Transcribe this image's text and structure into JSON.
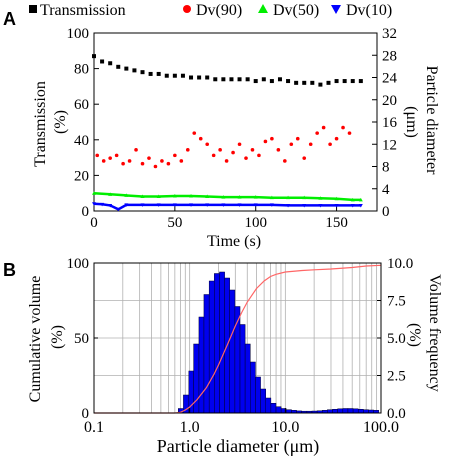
{
  "panel_a_label": "A",
  "panel_b_label": "B",
  "chart_data": [
    {
      "panel": "A",
      "type": "scatter",
      "xlabel": "Time (s)",
      "ylabel": "Transmission (%)",
      "ylabel_right": "Particle diameter (μm)",
      "xlim": [
        0,
        175
      ],
      "ylim": [
        0,
        100
      ],
      "ylim_right": [
        0,
        32
      ],
      "x_ticks": [
        "0",
        "50",
        "100",
        "150"
      ],
      "y_ticks": [
        "0",
        "20",
        "40",
        "60",
        "80",
        "100"
      ],
      "y_ticks_right": [
        "0",
        "4",
        "8",
        "12",
        "16",
        "20",
        "24",
        "28",
        "32"
      ],
      "legend_position": "top",
      "series": [
        {
          "name": "Transmission",
          "axis": "left",
          "marker": "square",
          "color": "#000000",
          "x": [
            0,
            5,
            10,
            15,
            20,
            25,
            30,
            35,
            40,
            45,
            50,
            55,
            60,
            65,
            70,
            75,
            80,
            85,
            90,
            95,
            100,
            105,
            110,
            115,
            120,
            125,
            130,
            135,
            140,
            145,
            150,
            155,
            160,
            165
          ],
          "values": [
            87,
            84,
            83,
            81,
            80,
            79,
            78,
            77,
            77,
            76,
            76,
            76,
            75,
            75,
            75,
            74,
            74,
            74,
            74,
            74,
            73,
            74,
            73,
            74,
            73,
            72,
            72,
            72,
            71,
            72,
            73,
            73,
            73,
            73
          ]
        },
        {
          "name": "Dv(90)",
          "axis": "right",
          "marker": "circle",
          "color": "#ff0000",
          "x": [
            2,
            6,
            10,
            14,
            18,
            22,
            26,
            30,
            34,
            38,
            42,
            46,
            50,
            54,
            58,
            62,
            66,
            70,
            74,
            78,
            82,
            86,
            90,
            94,
            98,
            102,
            106,
            110,
            114,
            118,
            122,
            126,
            130,
            134,
            138,
            142,
            146,
            150,
            154,
            158
          ],
          "values": [
            10,
            9,
            9.5,
            10,
            8.5,
            9,
            11,
            8.5,
            9.5,
            8,
            9,
            8.5,
            10,
            9,
            11,
            14,
            13,
            12,
            10,
            11,
            9,
            10.5,
            12,
            9.5,
            11,
            10,
            12.5,
            13,
            11,
            9,
            12,
            13,
            9.5,
            12,
            14,
            15,
            12,
            13,
            15,
            14
          ]
        },
        {
          "name": "Dv(50)",
          "axis": "right",
          "marker": "triangle-up",
          "color": "#00ee00",
          "x": [
            0,
            10,
            20,
            30,
            40,
            50,
            60,
            70,
            80,
            90,
            100,
            110,
            120,
            130,
            140,
            150,
            160,
            165
          ],
          "values": [
            3.2,
            3.0,
            2.8,
            2.6,
            2.6,
            2.7,
            2.7,
            2.6,
            2.5,
            2.5,
            2.5,
            2.4,
            2.4,
            2.4,
            2.3,
            2.2,
            2.0,
            2.0
          ]
        },
        {
          "name": "Dv(10)",
          "axis": "right",
          "marker": "triangle-down",
          "color": "#0000ff",
          "x": [
            0,
            5,
            10,
            15,
            20,
            30,
            40,
            50,
            60,
            70,
            80,
            90,
            100,
            110,
            120,
            130,
            140,
            150,
            160,
            165
          ],
          "values": [
            1.3,
            1.2,
            1.0,
            0.3,
            1.1,
            1.1,
            1.1,
            1.1,
            1.1,
            1.1,
            1.1,
            1.1,
            1.1,
            1.1,
            1.0,
            1.0,
            1.0,
            1.0,
            1.0,
            1.0
          ]
        }
      ]
    },
    {
      "panel": "B",
      "type": "bar",
      "xlabel": "Particle diameter (μm)",
      "ylabel": "Cumulative volume (%)",
      "ylabel_right": "Volume frequency (%)",
      "x_scale": "log",
      "xlim": [
        0.1,
        100
      ],
      "ylim": [
        0,
        100
      ],
      "ylim_right": [
        0,
        10
      ],
      "x_ticks": [
        "0.1",
        "1.0",
        "10.0",
        "100.0"
      ],
      "y_ticks": [
        "0",
        "50",
        "100"
      ],
      "y_ticks_right": [
        "0.0",
        "2.5",
        "5.0",
        "7.5",
        "10.0"
      ],
      "grid": true,
      "bar_color": "#0000ee",
      "bins_left_edge": [
        0.76,
        0.86,
        0.98,
        1.1,
        1.25,
        1.41,
        1.6,
        1.81,
        2.05,
        2.32,
        2.62,
        2.97,
        3.36,
        3.8,
        4.3,
        4.87,
        5.51,
        6.24,
        7.06,
        7.99,
        9.04,
        10.2,
        11.6,
        13.1,
        14.8,
        16.8,
        19.0,
        21.5,
        24.3,
        27.5,
        31.1,
        35.2,
        39.9,
        45.1,
        51.1,
        57.8,
        65.4,
        74.0,
        83.8
      ],
      "frequency": [
        0.3,
        1.2,
        2.8,
        4.6,
        6.4,
        7.9,
        8.8,
        9.3,
        9.4,
        9.0,
        8.2,
        7.1,
        5.9,
        4.6,
        3.4,
        2.4,
        1.6,
        1.0,
        0.65,
        0.42,
        0.3,
        0.22,
        0.18,
        0.14,
        0.12,
        0.12,
        0.13,
        0.15,
        0.18,
        0.22,
        0.25,
        0.28,
        0.3,
        0.3,
        0.28,
        0.25,
        0.22,
        0.2,
        0.18
      ],
      "cumulative_line": {
        "color": "#ff6666",
        "x": [
          0.1,
          0.7,
          0.8,
          0.9,
          1.0,
          1.2,
          1.5,
          1.8,
          2.0,
          2.5,
          3.0,
          3.5,
          4.0,
          5.0,
          6.0,
          7.0,
          8.0,
          10,
          15,
          20,
          30,
          50,
          70,
          100
        ],
        "values": [
          0,
          0,
          0.5,
          2,
          4,
          9,
          17,
          26,
          32,
          46,
          58,
          67,
          74,
          83,
          88,
          91,
          92.5,
          94,
          95,
          95.5,
          96,
          97,
          98,
          98.5
        ]
      }
    }
  ]
}
